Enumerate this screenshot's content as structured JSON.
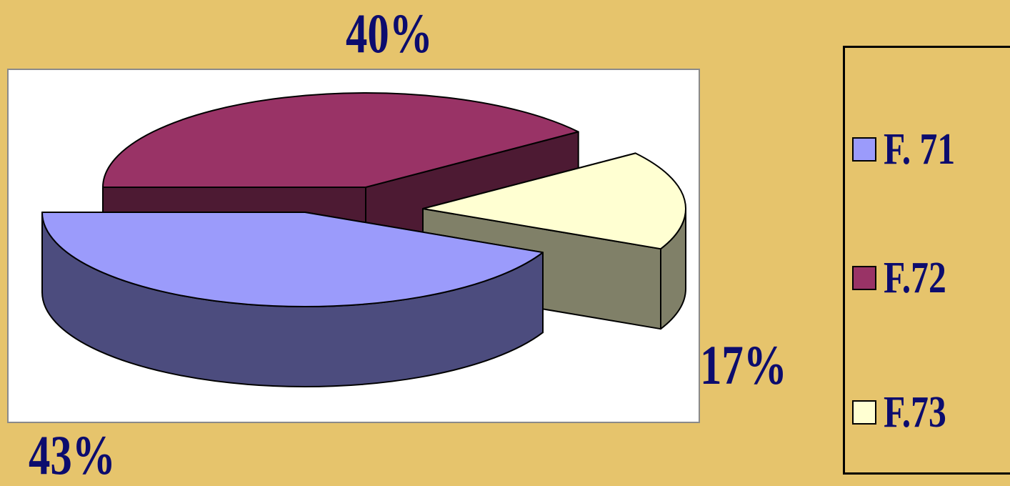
{
  "colors": {
    "background": "#e6c46c",
    "plot_background": "#ffffff",
    "text": "#0c0c6e",
    "slice_f71_top": "#9b9bfb",
    "slice_f71_side": "#4c4c7e",
    "slice_f72_top": "#993366",
    "slice_f72_side": "#4d1a33",
    "slice_f73_top": "#ffffd2",
    "slice_f73_side": "#808068"
  },
  "chart_data": {
    "type": "pie",
    "style": "3d-exploded",
    "categories": [
      "F. 71",
      "F.72",
      "F.73"
    ],
    "values": [
      43,
      40,
      17
    ],
    "data_labels": [
      "43%",
      "40%",
      "17%"
    ],
    "legend": {
      "placement": "right",
      "entries": [
        "F. 71",
        "F.72",
        "F.73"
      ]
    }
  }
}
